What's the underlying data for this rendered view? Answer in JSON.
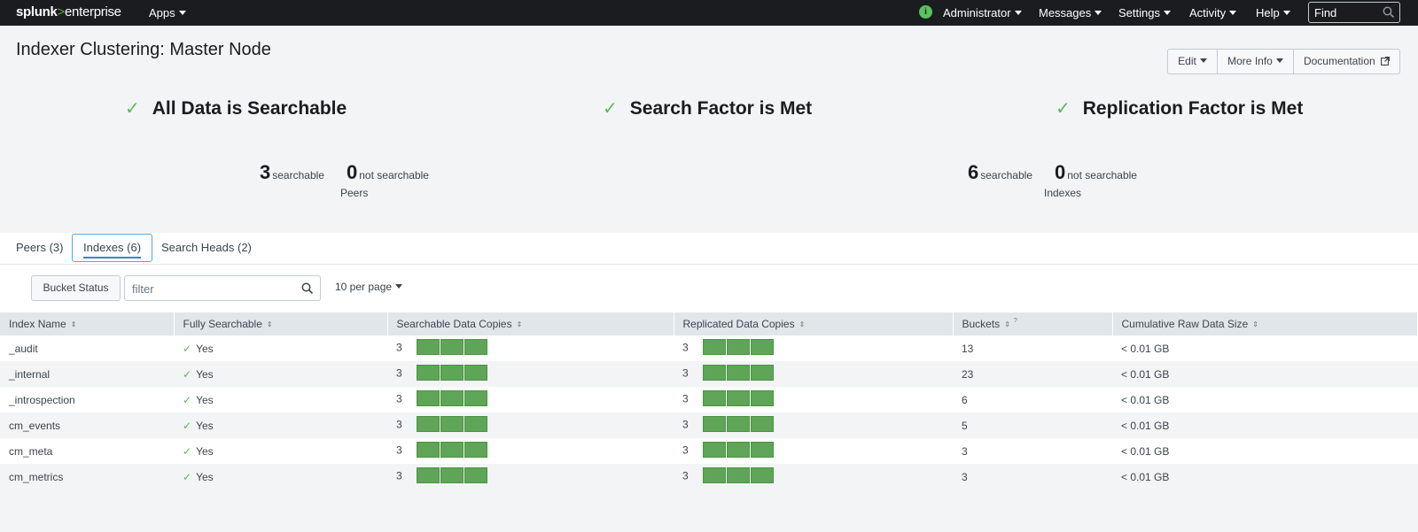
{
  "topbar": {
    "logo_main": "splunk",
    "logo_sep": ">",
    "logo_product": "enterprise",
    "apps": "Apps",
    "status_icon": "i",
    "user": "Administrator",
    "messages": "Messages",
    "settings": "Settings",
    "activity": "Activity",
    "help": "Help",
    "find_placeholder": "Find"
  },
  "header": {
    "title": "Indexer Clustering: Master Node",
    "edit": "Edit",
    "more_info": "More Info",
    "documentation": "Documentation"
  },
  "status": {
    "all_searchable": "All Data is Searchable",
    "search_factor": "Search Factor is Met",
    "replication_factor": "Replication Factor is Met"
  },
  "peers_summary": {
    "searchable_count": "3",
    "searchable_label": "searchable",
    "not_searchable_count": "0",
    "not_searchable_label": "not searchable",
    "caption": "Peers"
  },
  "indexes_summary": {
    "searchable_count": "6",
    "searchable_label": "searchable",
    "not_searchable_count": "0",
    "not_searchable_label": "not searchable",
    "caption": "Indexes"
  },
  "tabs": [
    {
      "label": "Peers (3)"
    },
    {
      "label": "Indexes (6)"
    },
    {
      "label": "Search Heads (2)"
    }
  ],
  "active_tab": "Indexes (6)",
  "toolbar": {
    "bucket_status": "Bucket Status",
    "filter_placeholder": "filter",
    "per_page": "10 per page"
  },
  "table": {
    "columns": [
      "Index Name",
      "Fully Searchable",
      "Searchable Data Copies",
      "Replicated Data Copies",
      "Buckets",
      "Cumulative Raw Data Size"
    ],
    "buckets_superscript": "?",
    "rows": [
      {
        "name": "_audit",
        "searchable": "Yes",
        "search_copies": "3",
        "repl_copies": "3",
        "buckets": "13",
        "size": "< 0.01 GB"
      },
      {
        "name": "_internal",
        "searchable": "Yes",
        "search_copies": "3",
        "repl_copies": "3",
        "buckets": "23",
        "size": "< 0.01 GB"
      },
      {
        "name": "_introspection",
        "searchable": "Yes",
        "search_copies": "3",
        "repl_copies": "3",
        "buckets": "6",
        "size": "< 0.01 GB"
      },
      {
        "name": "cm_events",
        "searchable": "Yes",
        "search_copies": "3",
        "repl_copies": "3",
        "buckets": "5",
        "size": "< 0.01 GB"
      },
      {
        "name": "cm_meta",
        "searchable": "Yes",
        "search_copies": "3",
        "repl_copies": "3",
        "buckets": "3",
        "size": "< 0.01 GB"
      },
      {
        "name": "cm_metrics",
        "searchable": "Yes",
        "search_copies": "3",
        "repl_copies": "3",
        "buckets": "3",
        "size": "< 0.01 GB"
      }
    ]
  },
  "colors": {
    "nav_bg": "#1a1c20",
    "accent_green": "#65a637",
    "check_green": "#5cb85c",
    "copy_bar": "#5fa557",
    "tab_active_border": "#5aa6df"
  },
  "icons": {
    "find": "search-icon",
    "filter": "search-icon",
    "status": "info-icon",
    "documentation": "external-link-icon",
    "status_check": "check-icon"
  }
}
